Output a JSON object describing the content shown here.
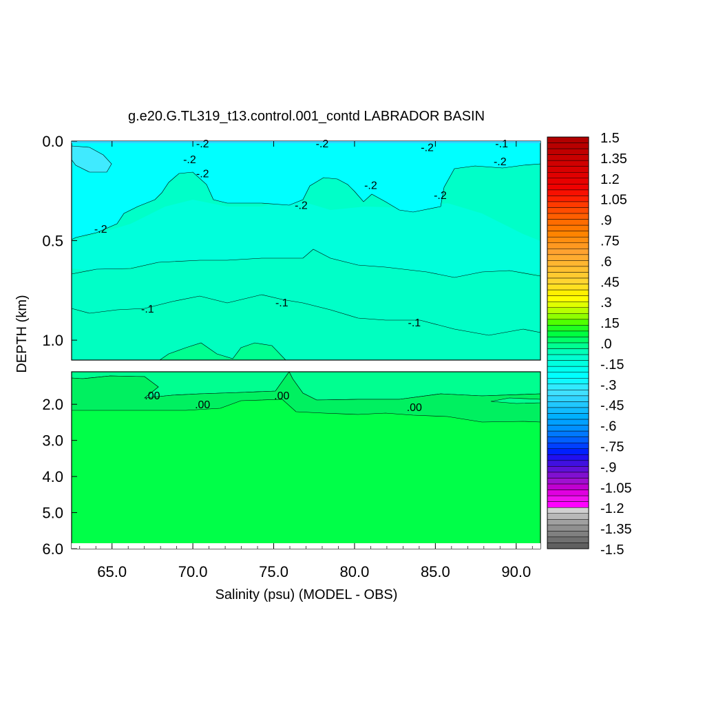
{
  "chart_data": {
    "type": "heatmap",
    "title": "g.e20.G.TL319_t13.control.001_contd LABRADOR BASIN",
    "xlabel": "Salinity (psu) (MODEL - OBS)",
    "ylabel": "DEPTH (km)",
    "x_ticks": [
      "65.0",
      "70.0",
      "75.0",
      "80.0",
      "85.0",
      "90.0"
    ],
    "x_tick_values": [
      65,
      70,
      75,
      80,
      85,
      90
    ],
    "xlim": [
      62.5,
      91.5
    ],
    "upper_panel": {
      "ylim": [
        0,
        1.1
      ],
      "y_ticks": [
        "0.0",
        "0.5",
        "1.0"
      ],
      "y_tick_values": [
        0,
        0.5,
        1.0
      ]
    },
    "lower_panel": {
      "ylim": [
        1.1,
        6.0
      ],
      "y_ticks": [
        "2.0",
        "3.0",
        "4.0",
        "5.0",
        "6.0"
      ],
      "y_tick_values": [
        2,
        3,
        4,
        5,
        6
      ]
    },
    "contour_labels": [
      {
        "text": "-.2",
        "x": 70.6,
        "depth": 0.01
      },
      {
        "text": "-.2",
        "x": 69.8,
        "depth": 0.09
      },
      {
        "text": "-.2",
        "x": 70.6,
        "depth": 0.16
      },
      {
        "text": "-.2",
        "x": 76.7,
        "depth": 0.32
      },
      {
        "text": "-.2",
        "x": 64.3,
        "depth": 0.44
      },
      {
        "text": "-.2",
        "x": 78.0,
        "depth": 0.01
      },
      {
        "text": "-.2",
        "x": 84.5,
        "depth": 0.03
      },
      {
        "text": "-.1",
        "x": 89.1,
        "depth": 0.01
      },
      {
        "text": "-.2",
        "x": 89.0,
        "depth": 0.1
      },
      {
        "text": "-.2",
        "x": 81.0,
        "depth": 0.22
      },
      {
        "text": "-.2",
        "x": 85.3,
        "depth": 0.27
      },
      {
        "text": "-.1",
        "x": 67.2,
        "depth": 0.84
      },
      {
        "text": "-.1",
        "x": 75.5,
        "depth": 0.81
      },
      {
        "text": "-.1",
        "x": 83.7,
        "depth": 0.91
      },
      {
        "text": ".00",
        "x": 67.5,
        "depth": 1.75
      },
      {
        "text": ".00",
        "x": 70.6,
        "depth": 2.0
      },
      {
        "text": ".00",
        "x": 75.5,
        "depth": 1.75
      },
      {
        "text": ".00",
        "x": 83.7,
        "depth": 2.07
      }
    ],
    "legend": {
      "labels": [
        "1.5",
        "1.35",
        "1.2",
        "1.05",
        ".9",
        ".75",
        ".6",
        ".45",
        ".3",
        ".15",
        ".0",
        "-.15",
        "-.3",
        "-.45",
        "-.6",
        "-.75",
        "-.9",
        "-1.05",
        "-1.2",
        "-1.35",
        "-1.5"
      ],
      "values": [
        1.5,
        1.35,
        1.2,
        1.05,
        0.9,
        0.75,
        0.6,
        0.45,
        0.3,
        0.15,
        0.0,
        -0.15,
        -0.3,
        -0.45,
        -0.6,
        -0.75,
        -0.9,
        -1.05,
        -1.2,
        -1.35,
        -1.5
      ],
      "colors": [
        "#b10000",
        "#b80000",
        "#c00000",
        "#c80000",
        "#d00000",
        "#d80000",
        "#e00000",
        "#e80000",
        "#f00000",
        "#f81000",
        "#ff2000",
        "#ff3a00",
        "#ff4c00",
        "#ff5e00",
        "#ff6c00",
        "#ff7800",
        "#ff8400",
        "#ff8e10",
        "#ff9820",
        "#ffa230",
        "#ffac30",
        "#ffb630",
        "#ffc030",
        "#ffca30",
        "#ffd430",
        "#ffe020",
        "#fff000",
        "#ffff00",
        "#e0ff00",
        "#b8ff00",
        "#90ff00",
        "#50ff00",
        "#20ff20",
        "#00ff40",
        "#00ff68",
        "#00ff90",
        "#00ffb8",
        "#00ffd0",
        "#00ffe0",
        "#00fff0",
        "#00ffff",
        "#10f8ff",
        "#30eaff",
        "#40e0ff",
        "#30d4ff",
        "#20c8ff",
        "#10bcff",
        "#00b0ff",
        "#00a0ff",
        "#0090ff",
        "#0078ff",
        "#0060ff",
        "#0040ff",
        "#0020ff",
        "#2010f0",
        "#4010e0",
        "#6010d8",
        "#8010d0",
        "#a010d0",
        "#c000d0",
        "#e000e0",
        "#f010f0",
        "#ff00ff",
        "#d0d0d0",
        "#b8b8b8",
        "#a0a0a0",
        "#909090",
        "#808080",
        "#707070",
        "#606060"
      ]
    },
    "fill_colors": {
      "surface": "#00ffff",
      "lighter_patch": "#40f0ff",
      "upper_mid": "#00ffe0",
      "upper_deep": "#00ffc0",
      "near_zero": "#00ff90",
      "lower": "#00f050",
      "deep": "#00ff48"
    }
  }
}
